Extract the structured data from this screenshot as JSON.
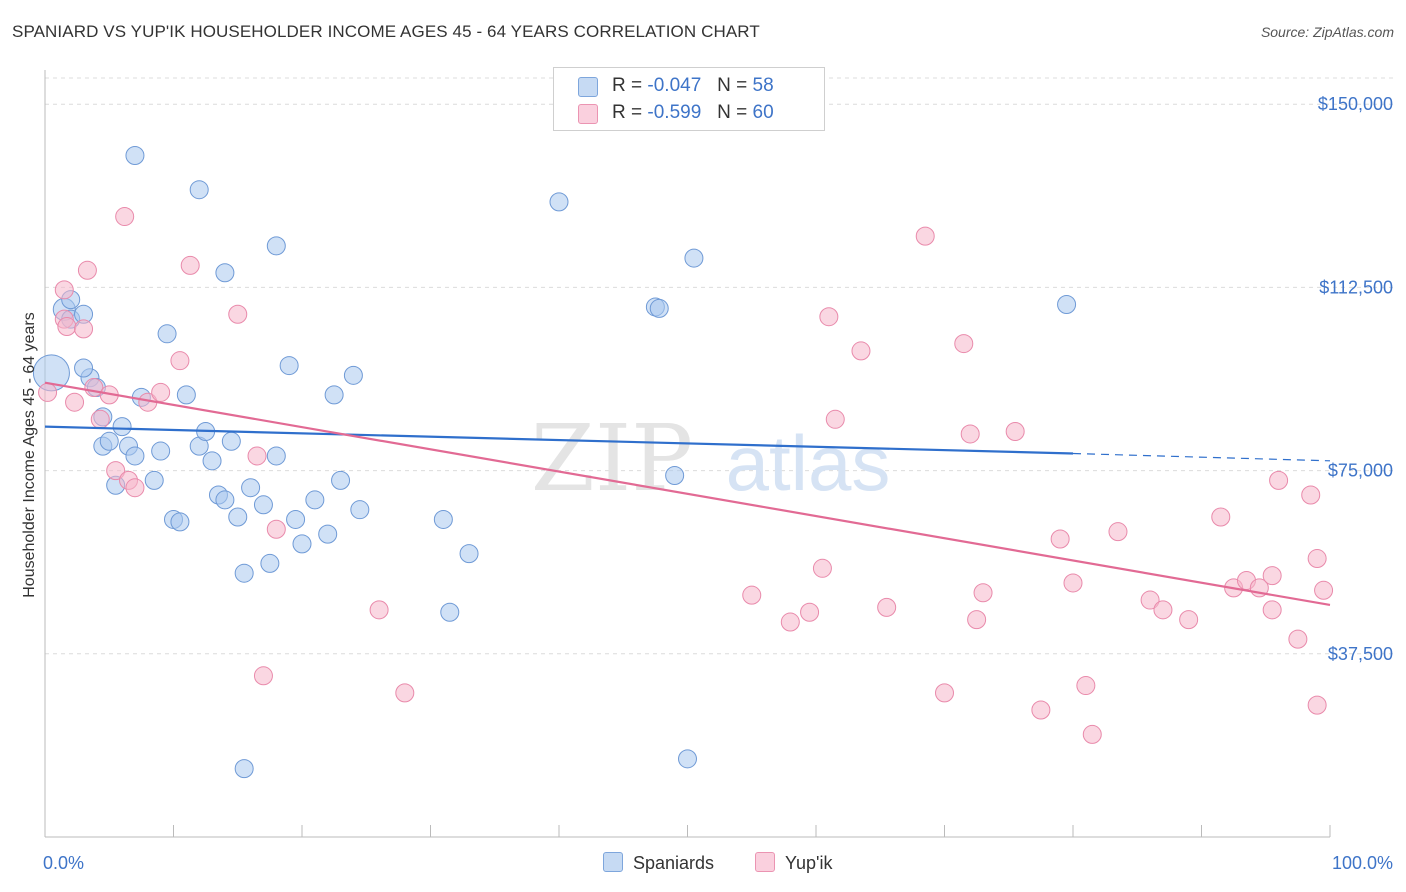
{
  "title": "SPANIARD VS YUP'IK HOUSEHOLDER INCOME AGES 45 - 64 YEARS CORRELATION CHART",
  "source": "Source: ZipAtlas.com",
  "watermark": {
    "zip": "ZIP",
    "atlas": "atlas"
  },
  "legend": {
    "rows": [
      {
        "r_label": "R =",
        "r_value": "-0.047",
        "n_label": "N =",
        "n_value": "58",
        "color": "#a9c8ee"
      },
      {
        "r_label": "R =",
        "r_value": "-0.599",
        "n_label": "N =",
        "n_value": "60",
        "color": "#f5b6cb"
      }
    ]
  },
  "chart_data": {
    "type": "scatter",
    "xlabel": "",
    "ylabel": "Householder Income Ages 45 - 64 years",
    "xlim": [
      0,
      100
    ],
    "ylim": [
      0,
      157000
    ],
    "x_tick_labels": [
      "0.0%",
      "100.0%"
    ],
    "y_ticks": [
      37500,
      75000,
      112500,
      150000
    ],
    "y_tick_labels": [
      "$37,500",
      "$75,000",
      "$112,500",
      "$150,000"
    ],
    "grid": true,
    "series": [
      {
        "name": "Spaniards",
        "color": "#a9c8ee",
        "stroke": "#6f9ad6",
        "trend": {
          "x0": 0,
          "y0": 84000,
          "x1": 80,
          "y1": 78500,
          "dash_to_x": 100,
          "dash_to_y": 77000,
          "color": "#2f6fcc"
        },
        "points": [
          [
            0.5,
            95000,
            18
          ],
          [
            1.5,
            108000,
            11
          ],
          [
            2.0,
            110000,
            9
          ],
          [
            2.0,
            106000,
            9
          ],
          [
            3.0,
            107000,
            9
          ],
          [
            3.5,
            94000,
            9
          ],
          [
            3.0,
            96000,
            9
          ],
          [
            4.0,
            92000,
            9
          ],
          [
            4.5,
            86000,
            9
          ],
          [
            6.0,
            84000,
            9
          ],
          [
            4.5,
            80000,
            9
          ],
          [
            5.0,
            81000,
            9
          ],
          [
            6.5,
            80000,
            9
          ],
          [
            7.0,
            78000,
            9
          ],
          [
            5.5,
            72000,
            9
          ],
          [
            8.5,
            73000,
            9
          ],
          [
            9.0,
            79000,
            9
          ],
          [
            7.5,
            90000,
            9
          ],
          [
            10.0,
            65000,
            9
          ],
          [
            10.5,
            64500,
            9
          ],
          [
            11.0,
            90500,
            9
          ],
          [
            12.0,
            80000,
            9
          ],
          [
            12.5,
            83000,
            9
          ],
          [
            13.0,
            77000,
            9
          ],
          [
            13.5,
            70000,
            9
          ],
          [
            14.0,
            69000,
            9
          ],
          [
            14.5,
            81000,
            9
          ],
          [
            15.0,
            65500,
            9
          ],
          [
            16.0,
            71500,
            9
          ],
          [
            15.5,
            54000,
            9
          ],
          [
            17.0,
            68000,
            9
          ],
          [
            17.5,
            56000,
            9
          ],
          [
            18.0,
            78000,
            9
          ],
          [
            19.5,
            65000,
            9
          ],
          [
            20.0,
            60000,
            9
          ],
          [
            21.0,
            69000,
            9
          ],
          [
            22.0,
            62000,
            9
          ],
          [
            23.0,
            73000,
            9
          ],
          [
            24.5,
            67000,
            9
          ],
          [
            19.0,
            96500,
            9
          ],
          [
            22.5,
            90500,
            9
          ],
          [
            24.0,
            94500,
            9
          ],
          [
            9.5,
            103000,
            9
          ],
          [
            18.0,
            121000,
            9
          ],
          [
            14.0,
            115500,
            9
          ],
          [
            12.0,
            132500,
            9
          ],
          [
            7.0,
            139500,
            9
          ],
          [
            31.0,
            65000,
            9
          ],
          [
            33.0,
            58000,
            9
          ],
          [
            31.5,
            46000,
            9
          ],
          [
            40.0,
            130000,
            9
          ],
          [
            47.5,
            108500,
            9
          ],
          [
            47.8,
            108200,
            9
          ],
          [
            50.5,
            118500,
            9
          ],
          [
            49.0,
            74000,
            9
          ],
          [
            79.5,
            109000,
            9
          ],
          [
            15.5,
            14000,
            9
          ],
          [
            50.0,
            16000,
            9
          ]
        ]
      },
      {
        "name": "Yup'ik",
        "color": "#f5b6cb",
        "stroke": "#e98aab",
        "trend": {
          "x0": 0,
          "y0": 93000,
          "x1": 100,
          "y1": 47500,
          "color": "#e26a94"
        },
        "points": [
          [
            0.2,
            91000,
            9
          ],
          [
            1.5,
            106000,
            9
          ],
          [
            1.5,
            112000,
            9
          ],
          [
            1.7,
            104500,
            9
          ],
          [
            2.3,
            89000,
            9
          ],
          [
            3.0,
            104000,
            9
          ],
          [
            3.3,
            116000,
            9
          ],
          [
            3.8,
            92000,
            9
          ],
          [
            4.3,
            85500,
            9
          ],
          [
            5.5,
            75000,
            9
          ],
          [
            6.5,
            73000,
            9
          ],
          [
            7.0,
            71500,
            9
          ],
          [
            5.0,
            90500,
            9
          ],
          [
            6.2,
            127000,
            9
          ],
          [
            8.0,
            89000,
            9
          ],
          [
            9.0,
            91000,
            9
          ],
          [
            10.5,
            97500,
            9
          ],
          [
            11.3,
            117000,
            9
          ],
          [
            15.0,
            107000,
            9
          ],
          [
            16.5,
            78000,
            9
          ],
          [
            17.0,
            33000,
            9
          ],
          [
            18.0,
            63000,
            9
          ],
          [
            26.0,
            46500,
            9
          ],
          [
            28.0,
            29500,
            9
          ],
          [
            55.0,
            49500,
            9
          ],
          [
            58.0,
            44000,
            9
          ],
          [
            59.5,
            46000,
            9
          ],
          [
            60.5,
            55000,
            9
          ],
          [
            61.0,
            106500,
            9
          ],
          [
            61.5,
            85500,
            9
          ],
          [
            63.5,
            99500,
            9
          ],
          [
            65.5,
            47000,
            9
          ],
          [
            68.5,
            123000,
            9
          ],
          [
            70.0,
            29500,
            9
          ],
          [
            71.5,
            101000,
            9
          ],
          [
            72.0,
            82500,
            9
          ],
          [
            72.5,
            44500,
            9
          ],
          [
            73.0,
            50000,
            9
          ],
          [
            75.5,
            83000,
            9
          ],
          [
            77.5,
            26000,
            9
          ],
          [
            79.0,
            61000,
            9
          ],
          [
            80.0,
            52000,
            9
          ],
          [
            81.5,
            21000,
            9
          ],
          [
            81.0,
            31000,
            9
          ],
          [
            83.5,
            62500,
            9
          ],
          [
            86.0,
            48500,
            9
          ],
          [
            87.0,
            46500,
            9
          ],
          [
            89.0,
            44500,
            9
          ],
          [
            91.5,
            65500,
            9
          ],
          [
            92.5,
            51000,
            9
          ],
          [
            93.5,
            52500,
            9
          ],
          [
            94.5,
            51000,
            9
          ],
          [
            95.5,
            46500,
            9
          ],
          [
            95.5,
            53500,
            9
          ],
          [
            96.0,
            73000,
            9
          ],
          [
            97.5,
            40500,
            9
          ],
          [
            98.5,
            70000,
            9
          ],
          [
            99.0,
            57000,
            9
          ],
          [
            99.5,
            50500,
            9
          ],
          [
            99.0,
            27000,
            9
          ]
        ]
      }
    ]
  }
}
